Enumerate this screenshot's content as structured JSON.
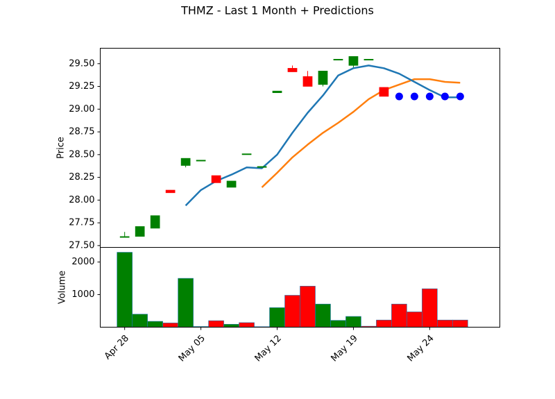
{
  "chart_data": {
    "title": "THMZ - Last 1 Month + Predictions",
    "price_panel": {
      "type": "candlestick",
      "ylabel": "Price",
      "ylim": [
        27.48,
        29.67
      ],
      "yticks": [
        "27.50",
        "27.75",
        "28.00",
        "28.25",
        "28.50",
        "28.75",
        "29.00",
        "29.25",
        "29.50"
      ],
      "candles": [
        {
          "x": 0,
          "open": 27.59,
          "close": 27.6,
          "high": 27.65,
          "low": 27.59
        },
        {
          "x": 1,
          "open": 27.6,
          "close": 27.71,
          "high": 27.71,
          "low": 27.6
        },
        {
          "x": 2,
          "open": 27.69,
          "close": 27.83,
          "high": 27.83,
          "low": 27.69
        },
        {
          "x": 3,
          "open": 28.11,
          "close": 28.08,
          "high": 28.11,
          "low": 28.08
        },
        {
          "x": 4,
          "open": 28.38,
          "close": 28.46,
          "high": 28.46,
          "low": 28.36
        },
        {
          "x": 5,
          "open": 28.44,
          "close": 28.44,
          "high": 28.44,
          "low": 28.44
        },
        {
          "x": 6,
          "open": 28.27,
          "close": 28.19,
          "high": 28.27,
          "low": 28.19
        },
        {
          "x": 7,
          "open": 28.14,
          "close": 28.21,
          "high": 28.21,
          "low": 28.14
        },
        {
          "x": 8,
          "open": 28.51,
          "close": 28.51,
          "high": 28.51,
          "low": 28.51
        },
        {
          "x": 9,
          "open": 28.37,
          "close": 28.37,
          "high": 28.37,
          "low": 28.37
        },
        {
          "x": 10,
          "open": 29.18,
          "close": 29.2,
          "high": 29.2,
          "low": 29.18
        },
        {
          "x": 11,
          "open": 29.45,
          "close": 29.41,
          "high": 29.48,
          "low": 29.41
        },
        {
          "x": 12,
          "open": 29.36,
          "close": 29.25,
          "high": 29.42,
          "low": 29.25
        },
        {
          "x": 13,
          "open": 29.27,
          "close": 29.42,
          "high": 29.42,
          "low": 29.25
        },
        {
          "x": 14,
          "open": 29.55,
          "close": 29.55,
          "high": 29.55,
          "low": 29.55
        },
        {
          "x": 15,
          "open": 29.48,
          "close": 29.58,
          "high": 29.58,
          "low": 29.46
        },
        {
          "x": 16,
          "open": 29.55,
          "close": 29.55,
          "high": 29.55,
          "low": 29.55
        },
        {
          "x": 17,
          "open": 29.24,
          "close": 29.14,
          "high": 29.24,
          "low": 29.14
        }
      ],
      "ma_short": [
        {
          "x": 4,
          "y": 27.94
        },
        {
          "x": 5,
          "y": 28.11
        },
        {
          "x": 6,
          "y": 28.21
        },
        {
          "x": 7,
          "y": 28.28
        },
        {
          "x": 8,
          "y": 28.36
        },
        {
          "x": 9,
          "y": 28.35
        },
        {
          "x": 10,
          "y": 28.5
        },
        {
          "x": 11,
          "y": 28.74
        },
        {
          "x": 12,
          "y": 28.96
        },
        {
          "x": 13,
          "y": 29.15
        },
        {
          "x": 14,
          "y": 29.37
        },
        {
          "x": 15,
          "y": 29.45
        },
        {
          "x": 16,
          "y": 29.48
        },
        {
          "x": 17,
          "y": 29.45
        },
        {
          "x": 18,
          "y": 29.39
        },
        {
          "x": 19,
          "y": 29.3
        },
        {
          "x": 20,
          "y": 29.21
        },
        {
          "x": 21,
          "y": 29.13
        },
        {
          "x": 22,
          "y": 29.13
        }
      ],
      "ma_long": [
        {
          "x": 9,
          "y": 28.14
        },
        {
          "x": 10,
          "y": 28.3
        },
        {
          "x": 11,
          "y": 28.47
        },
        {
          "x": 12,
          "y": 28.61
        },
        {
          "x": 13,
          "y": 28.74
        },
        {
          "x": 14,
          "y": 28.85
        },
        {
          "x": 15,
          "y": 28.97
        },
        {
          "x": 16,
          "y": 29.11
        },
        {
          "x": 17,
          "y": 29.21
        },
        {
          "x": 18,
          "y": 29.27
        },
        {
          "x": 19,
          "y": 29.33
        },
        {
          "x": 20,
          "y": 29.33
        },
        {
          "x": 21,
          "y": 29.3
        },
        {
          "x": 22,
          "y": 29.29
        }
      ],
      "predictions": [
        {
          "x": 18,
          "y": 29.14
        },
        {
          "x": 19,
          "y": 29.14
        },
        {
          "x": 20,
          "y": 29.14
        },
        {
          "x": 21,
          "y": 29.14
        },
        {
          "x": 22,
          "y": 29.14
        }
      ]
    },
    "volume_panel": {
      "type": "bar",
      "ylabel": "Volume",
      "ylim": [
        0,
        2450
      ],
      "yticks": [
        "1000",
        "2000"
      ],
      "bars": [
        {
          "x": 0,
          "value": 2300,
          "up": true
        },
        {
          "x": 1,
          "value": 400,
          "up": true
        },
        {
          "x": 2,
          "value": 180,
          "up": true
        },
        {
          "x": 3,
          "value": 130,
          "up": false
        },
        {
          "x": 4,
          "value": 1500,
          "up": true
        },
        {
          "x": 5,
          "value": 20,
          "up": true
        },
        {
          "x": 6,
          "value": 200,
          "up": false
        },
        {
          "x": 7,
          "value": 90,
          "up": true
        },
        {
          "x": 8,
          "value": 140,
          "up": false
        },
        {
          "x": 9,
          "value": 15,
          "up": false
        },
        {
          "x": 10,
          "value": 600,
          "up": true
        },
        {
          "x": 11,
          "value": 980,
          "up": false
        },
        {
          "x": 12,
          "value": 1260,
          "up": false
        },
        {
          "x": 13,
          "value": 710,
          "up": true
        },
        {
          "x": 14,
          "value": 210,
          "up": true
        },
        {
          "x": 15,
          "value": 330,
          "up": true
        },
        {
          "x": 16,
          "value": 30,
          "up": false
        },
        {
          "x": 17,
          "value": 220,
          "up": false
        },
        {
          "x": 18,
          "value": 710,
          "up": false
        },
        {
          "x": 19,
          "value": 470,
          "up": false
        },
        {
          "x": 20,
          "value": 1180,
          "up": false
        },
        {
          "x": 21,
          "value": 220,
          "up": false
        },
        {
          "x": 22,
          "value": 220,
          "up": false
        }
      ]
    },
    "x_axis": {
      "xlim": [
        -1.6,
        24.6
      ],
      "ticks": [
        {
          "x": 0,
          "label": "Apr 28"
        },
        {
          "x": 5,
          "label": "May 05"
        },
        {
          "x": 10,
          "label": "May 12"
        },
        {
          "x": 15,
          "label": "May 19"
        },
        {
          "x": 20,
          "label": "May 24"
        }
      ]
    },
    "colors": {
      "up": "#008000",
      "down": "#ff0000",
      "ma_short": "#1f77b4",
      "ma_long": "#ff7f0e",
      "prediction": "#0000ff"
    }
  }
}
